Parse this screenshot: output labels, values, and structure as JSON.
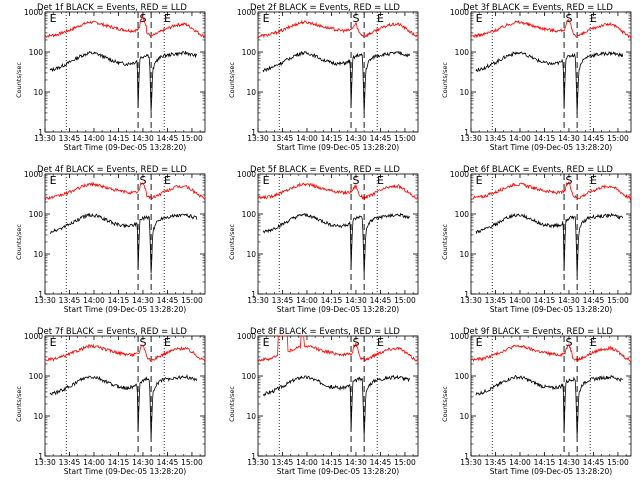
{
  "chart_data": {
    "type": "line",
    "layout": "3x3 grid of panels",
    "x_axis": {
      "label": "Start Time (09-Dec-05 13:28:20)",
      "range": [
        "13:30",
        "15:08"
      ],
      "ticks": [
        "13:30",
        "13:45",
        "14:00",
        "14:15",
        "14:30",
        "14:45",
        "15:00"
      ]
    },
    "y_axis": {
      "label": "Counts/sec",
      "scale": "log",
      "range": [
        1,
        1000
      ],
      "ticks": [
        "1",
        "10",
        "100",
        "1000"
      ]
    },
    "series_colors": {
      "events": "#000000",
      "lld": "#ff0000"
    },
    "markers": {
      "dotted_vertical_at": [
        "13:43",
        "14:43"
      ],
      "dashed_vertical_at": [
        "14:27",
        "14:35"
      ],
      "labels": [
        {
          "text": "E",
          "at": "13:35"
        },
        {
          "text": "S",
          "at": "14:30"
        },
        {
          "text": "E",
          "at": "14:45"
        }
      ]
    },
    "panels": [
      {
        "title": "Det 1f BLACK = Events, RED = LLD",
        "spike": "strong",
        "red_burst": false
      },
      {
        "title": "Det 2f BLACK = Events, RED = LLD",
        "spike": "weak",
        "red_burst": false
      },
      {
        "title": "Det 3f BLACK = Events, RED = LLD",
        "spike": "medium",
        "red_burst": false
      },
      {
        "title": "Det 4f BLACK = Events, RED = LLD",
        "spike": "medium",
        "red_burst": false
      },
      {
        "title": "Det 5f BLACK = Events, RED = LLD",
        "spike": "weak",
        "red_burst": false
      },
      {
        "title": "Det 6f BLACK = Events, RED = LLD",
        "spike": "medium",
        "red_burst": false
      },
      {
        "title": "Det 7f BLACK = Events, RED = LLD",
        "spike": "medium",
        "red_burst": false
      },
      {
        "title": "Det 8f BLACK = Events, RED = LLD",
        "spike": "medium",
        "red_burst": true
      },
      {
        "title": "Det 9f BLACK = Events, RED = LLD",
        "spike": "medium",
        "red_burst": false
      }
    ],
    "profiles": {
      "red": [
        [
          "13:30",
          250
        ],
        [
          "13:37",
          270
        ],
        [
          "13:45",
          350
        ],
        [
          "13:52",
          470
        ],
        [
          "13:57",
          560
        ],
        [
          "14:02",
          540
        ],
        [
          "14:08",
          450
        ],
        [
          "14:14",
          390
        ],
        [
          "14:20",
          350
        ],
        [
          "14:24",
          340
        ],
        [
          "14:27",
          360
        ],
        [
          "14:30",
          520
        ],
        [
          "14:32",
          300
        ],
        [
          "14:35",
          250
        ],
        [
          "14:38",
          280
        ],
        [
          "14:43",
          360
        ],
        [
          "14:50",
          470
        ],
        [
          "14:56",
          500
        ],
        [
          "15:00",
          400
        ],
        [
          "15:05",
          280
        ],
        [
          "15:08",
          240
        ]
      ],
      "black": [
        [
          "13:33",
          35
        ],
        [
          "13:38",
          40
        ],
        [
          "13:45",
          55
        ],
        [
          "13:52",
          80
        ],
        [
          "13:57",
          95
        ],
        [
          "14:02",
          90
        ],
        [
          "14:08",
          70
        ],
        [
          "14:14",
          55
        ],
        [
          "14:20",
          50
        ],
        [
          "14:25",
          55
        ],
        [
          "14:26.5",
          62
        ],
        [
          "14:27",
          4
        ],
        [
          "14:28",
          70
        ],
        [
          "14:32",
          85
        ],
        [
          "14:34",
          80
        ],
        [
          "14:35",
          3
        ],
        [
          "14:36",
          35
        ],
        [
          "14:38",
          60
        ],
        [
          "14:42",
          80
        ],
        [
          "14:50",
          90
        ],
        [
          "14:57",
          95
        ],
        [
          "15:00",
          85
        ],
        [
          "15:03",
          80
        ]
      ]
    }
  }
}
